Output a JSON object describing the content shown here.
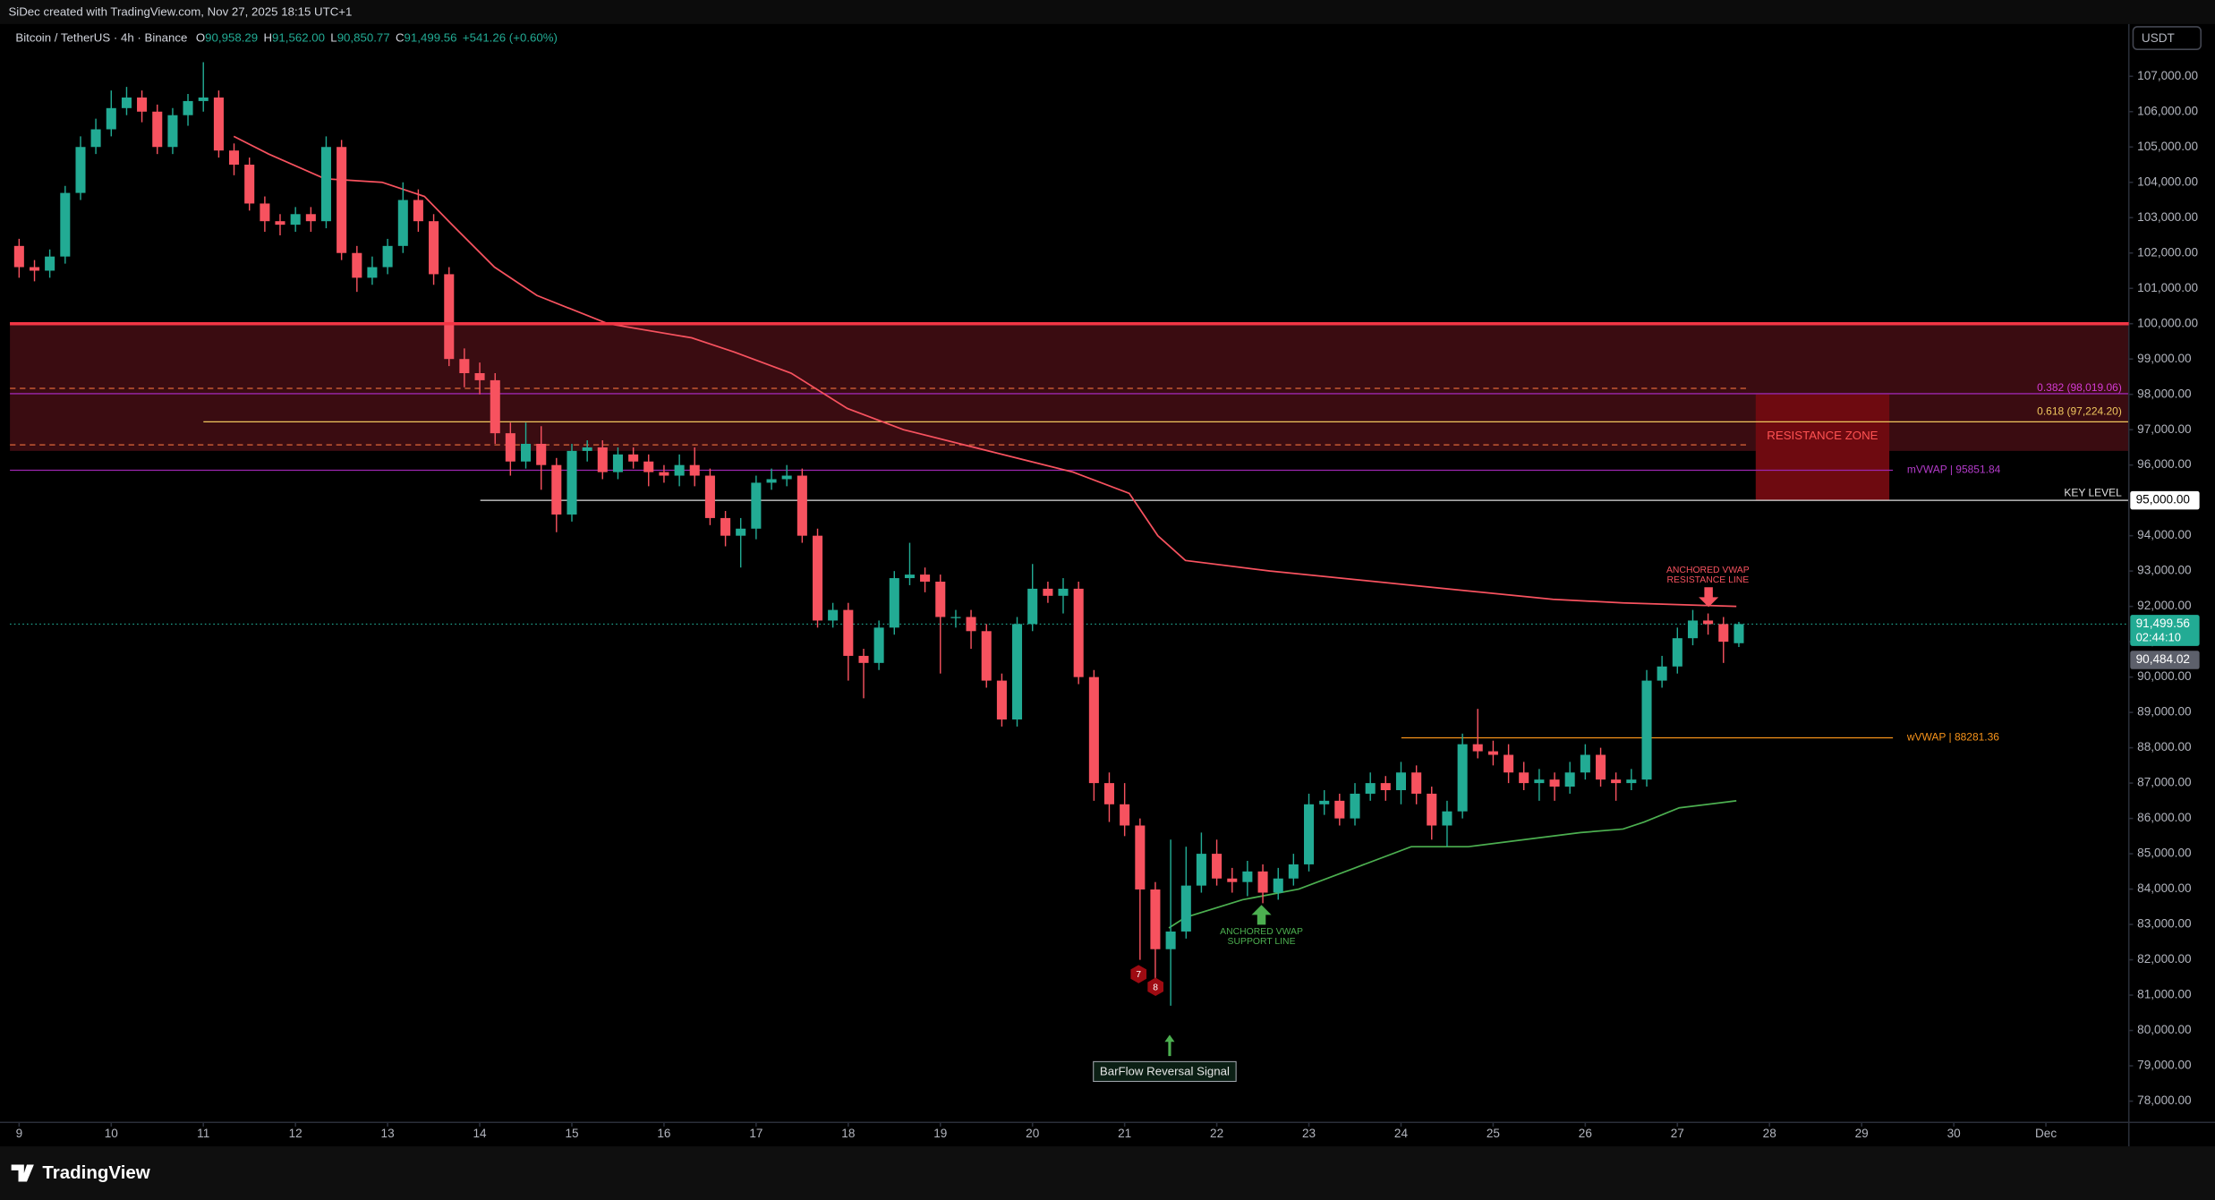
{
  "chart_data": {
    "type": "candlestick",
    "title": "SiDec created with TradingView.com, Nov 27, 2025 18:15 UTC+1",
    "symbol": "Bitcoin / TetherUS · 4h · Binance",
    "ohlc_legend": [
      {
        "key": "O",
        "text": "90,958.29"
      },
      {
        "key": "H",
        "text": "91,562.00"
      },
      {
        "key": "L",
        "text": "90,850.77"
      },
      {
        "key": "C",
        "text": "91,499.56"
      }
    ],
    "change": "+541.26 (+0.60%)",
    "currency": "USDT",
    "brand": "TradingView",
    "up_color": "#22ab94",
    "down_color": "#f7525f",
    "grid": false,
    "xlim": [
      8.9,
      31.9
    ],
    "xticks": [
      9,
      10,
      11,
      12,
      13,
      14,
      15,
      16,
      17,
      18,
      19,
      20,
      21,
      22,
      23,
      24,
      25,
      26,
      27,
      28,
      29,
      30,
      {
        "value": 31,
        "label": "Dec"
      }
    ],
    "ylim": [
      77400,
      108480
    ],
    "yticks": [
      {
        "value": 78000,
        "label": "78,000.00"
      },
      {
        "value": 79000,
        "label": "79,000.00"
      },
      {
        "value": 80000,
        "label": "80,000.00"
      },
      {
        "value": 81000,
        "label": "81,000.00"
      },
      {
        "value": 82000,
        "label": "82,000.00"
      },
      {
        "value": 83000,
        "label": "83,000.00"
      },
      {
        "value": 84000,
        "label": "84,000.00"
      },
      {
        "value": 85000,
        "label": "85,000.00"
      },
      {
        "value": 86000,
        "label": "86,000.00"
      },
      {
        "value": 87000,
        "label": "87,000.00"
      },
      {
        "value": 88000,
        "label": "88,000.00"
      },
      {
        "value": 89000,
        "label": "89,000.00"
      },
      {
        "value": 90000,
        "label": "90,000.00"
      },
      {
        "value": 91000,
        "label": "91,000.00"
      },
      {
        "value": 92000,
        "label": "92,000.00"
      },
      {
        "value": 93000,
        "label": "93,000.00"
      },
      {
        "value": 94000,
        "label": "94,000.00"
      },
      {
        "value": 96000,
        "label": "96,000.00"
      },
      {
        "value": 97000,
        "label": "97,000.00"
      },
      {
        "value": 98000,
        "label": "98,000.00"
      },
      {
        "value": 99000,
        "label": "99,000.00"
      },
      {
        "value": 100000,
        "label": "100,000.00"
      },
      {
        "value": 101000,
        "label": "101,000.00"
      },
      {
        "value": 102000,
        "label": "102,000.00"
      },
      {
        "value": 103000,
        "label": "103,000.00"
      },
      {
        "value": 104000,
        "label": "104,000.00"
      },
      {
        "value": 105000,
        "label": "105,000.00"
      },
      {
        "value": 106000,
        "label": "106,000.00"
      },
      {
        "value": 107000,
        "label": "107,000.00"
      }
    ],
    "candles": {
      "x": [
        9,
        9.167,
        9.333,
        9.5,
        9.667,
        9.833,
        10,
        10.167,
        10.333,
        10.5,
        10.667,
        10.833,
        11,
        11.167,
        11.333,
        11.5,
        11.667,
        11.833,
        12,
        12.167,
        12.333,
        12.5,
        12.667,
        12.833,
        13,
        13.167,
        13.333,
        13.5,
        13.667,
        13.833,
        14,
        14.167,
        14.333,
        14.5,
        14.667,
        14.833,
        15,
        15.167,
        15.333,
        15.5,
        15.667,
        15.833,
        16,
        16.167,
        16.333,
        16.5,
        16.667,
        16.833,
        17,
        17.167,
        17.333,
        17.5,
        17.667,
        17.833,
        18,
        18.167,
        18.333,
        18.5,
        18.667,
        18.833,
        19,
        19.167,
        19.333,
        19.5,
        19.667,
        19.833,
        20,
        20.167,
        20.333,
        20.5,
        20.667,
        20.833,
        21,
        21.167,
        21.333,
        21.5,
        21.667,
        21.833,
        22,
        22.167,
        22.333,
        22.5,
        22.667,
        22.833,
        23,
        23.167,
        23.333,
        23.5,
        23.667,
        23.833,
        24,
        24.167,
        24.333,
        24.5,
        24.667,
        24.833,
        25,
        25.167,
        25.333,
        25.5,
        25.667,
        25.833,
        26,
        26.167,
        26.333,
        26.5,
        26.667,
        26.833,
        27,
        27.167,
        27.333,
        27.5,
        27.667
      ],
      "open": [
        102200,
        101600,
        101500,
        101900,
        103700,
        105000,
        105500,
        106100,
        106400,
        106000,
        105000,
        105900,
        106300,
        106400,
        104900,
        104500,
        103400,
        102900,
        102800,
        103100,
        102900,
        105000,
        102000,
        101300,
        101600,
        102200,
        103500,
        102900,
        101400,
        99000,
        98600,
        98400,
        96900,
        96100,
        96600,
        96000,
        94600,
        96400,
        96500,
        95800,
        96300,
        96100,
        95800,
        95700,
        96000,
        95700,
        94500,
        94000,
        94200,
        95500,
        95600,
        95700,
        94000,
        91600,
        91900,
        90600,
        90400,
        91400,
        92800,
        92900,
        92700,
        91700,
        91700,
        91300,
        89900,
        88800,
        91500,
        92500,
        92300,
        92500,
        90000,
        87000,
        86400,
        85800,
        83990,
        82300,
        82800,
        84100,
        85000,
        84300,
        84200,
        84500,
        83900,
        84300,
        84700,
        86400,
        86500,
        86000,
        86700,
        87000,
        86800,
        87300,
        86700,
        85800,
        86200,
        88100,
        87900,
        87800,
        87300,
        87000,
        87100,
        86900,
        87300,
        87800,
        87100,
        87000,
        87100,
        89900,
        90300,
        91100,
        91600,
        91500,
        90958.29
      ],
      "high": [
        102400,
        101800,
        102100,
        103900,
        105300,
        105800,
        106600,
        106700,
        106600,
        106200,
        106100,
        106500,
        107400,
        106600,
        105100,
        104700,
        103600,
        103100,
        103300,
        103300,
        105300,
        105200,
        102200,
        101900,
        102400,
        104000,
        103800,
        103100,
        101600,
        99300,
        98900,
        98600,
        97200,
        97200,
        97100,
        96200,
        96600,
        96700,
        96700,
        96500,
        96500,
        96300,
        96000,
        96300,
        96500,
        95900,
        94700,
        94500,
        95700,
        95900,
        96000,
        95900,
        94200,
        92100,
        92100,
        90800,
        91600,
        93000,
        93800,
        93100,
        92900,
        91900,
        91900,
        91500,
        90100,
        91700,
        93200,
        92700,
        92800,
        92700,
        90200,
        87300,
        87000,
        86000,
        84200,
        85400,
        85200,
        85600,
        85400,
        84600,
        84800,
        84700,
        84600,
        85000,
        86700,
        86800,
        86700,
        87000,
        87300,
        87200,
        87600,
        87500,
        86900,
        86500,
        88400,
        89100,
        88200,
        88100,
        87600,
        87400,
        87300,
        87600,
        88100,
        88000,
        87300,
        87400,
        90200,
        90600,
        91400,
        91900,
        91800,
        91700,
        91562
      ],
      "low": [
        101300,
        101200,
        101300,
        101700,
        103500,
        104800,
        105300,
        105900,
        105700,
        104800,
        104800,
        105600,
        106000,
        104700,
        104200,
        103200,
        102600,
        102500,
        102600,
        102600,
        102700,
        101800,
        100900,
        101100,
        101400,
        102000,
        102600,
        101100,
        98800,
        98200,
        98000,
        96600,
        95700,
        95900,
        95300,
        94100,
        94400,
        96100,
        95600,
        95600,
        95900,
        95400,
        95500,
        95400,
        95400,
        94300,
        93700,
        93100,
        93900,
        95300,
        95400,
        93800,
        91400,
        91400,
        89900,
        89400,
        90200,
        91200,
        92600,
        92400,
        90100,
        91400,
        90800,
        89700,
        88600,
        88600,
        91300,
        92100,
        91800,
        89800,
        86500,
        85900,
        85500,
        82000,
        81400,
        80700,
        82600,
        83900,
        84100,
        83900,
        83800,
        83600,
        83700,
        84100,
        84500,
        86100,
        85800,
        85800,
        86500,
        86500,
        86400,
        86400,
        85400,
        85200,
        86000,
        87700,
        87500,
        87000,
        86800,
        86500,
        86500,
        86700,
        87100,
        86900,
        86500,
        86800,
        86900,
        89700,
        90100,
        90900,
        91200,
        90400,
        90850.77
      ],
      "close": [
        101600,
        101500,
        101900,
        103700,
        105000,
        105500,
        106100,
        106400,
        106000,
        105000,
        105900,
        106300,
        106400,
        104900,
        104500,
        103400,
        102900,
        102800,
        103100,
        102900,
        105000,
        102000,
        101300,
        101600,
        102200,
        103500,
        102900,
        101400,
        99000,
        98600,
        98400,
        96900,
        96100,
        96600,
        96000,
        94600,
        96400,
        96500,
        95800,
        96300,
        96100,
        95800,
        95700,
        96000,
        95700,
        94500,
        94000,
        94200,
        95500,
        95600,
        95700,
        94000,
        91600,
        91900,
        90600,
        90400,
        91400,
        92800,
        92900,
        92700,
        91700,
        91700,
        91300,
        89900,
        88800,
        91500,
        92500,
        92300,
        92500,
        90000,
        87000,
        86400,
        85800,
        83990,
        82300,
        82800,
        84100,
        85000,
        84300,
        84200,
        84500,
        83900,
        84300,
        84700,
        86400,
        86500,
        86000,
        86700,
        87000,
        86800,
        87300,
        86700,
        85800,
        86200,
        88100,
        87900,
        87800,
        87300,
        87000,
        87100,
        86900,
        87300,
        87800,
        87100,
        87000,
        87100,
        89900,
        90300,
        91100,
        91600,
        91500,
        91000,
        91499.56
      ]
    },
    "lines": [
      {
        "color": "#f7525f",
        "x": [
          11.33,
          11.71,
          12.32,
          12.94,
          13.4,
          13.7,
          14.16,
          14.62,
          15.39,
          16.3,
          16.76,
          17.38,
          17.99,
          18.6,
          19.52,
          20.44,
          21.05,
          21.36,
          21.66,
          22.58,
          24.11,
          25.65,
          26.41,
          27.64
        ],
        "values": [
          105300,
          104800,
          104100,
          104000,
          103600,
          102800,
          101600,
          100800,
          100000,
          99600,
          99200,
          98600,
          97600,
          97000,
          96400,
          95800,
          95200,
          94000,
          93300,
          93000,
          92600,
          92200,
          92100,
          92000
        ]
      },
      {
        "color": "#4caf50",
        "x": [
          21.48,
          21.66,
          22.28,
          22.89,
          23.5,
          24.11,
          24.73,
          25.34,
          25.95,
          26.41,
          26.64,
          27.02,
          27.64
        ],
        "values": [
          82900,
          83200,
          83700,
          84000,
          84600,
          85200,
          85200,
          85400,
          85600,
          85700,
          85900,
          86300,
          86500
        ]
      }
    ],
    "zones": [
      {
        "ylim": [
          96400,
          100000
        ],
        "color": "#3a0c11"
      },
      {
        "label": "RESISTANCE ZONE",
        "xlim": [
          27.85,
          29.3
        ],
        "ylim": [
          95000,
          98000
        ],
        "color": "#6e0a10",
        "label_color": "#ff5252"
      }
    ],
    "levels": [
      {
        "value": 100000,
        "color": "#f23645",
        "style": "solid",
        "width": 2.2
      },
      {
        "value": 98170,
        "color": "#e0673a",
        "style": "dashed",
        "width": 0.8
      },
      {
        "value": 98019.06,
        "color": "#9c27b0",
        "style": "solid",
        "width": 0.8,
        "label": "0.382 (98,019.06)",
        "label_color": "#d53bd5"
      },
      {
        "value": 97224.2,
        "color": "#f0c75e",
        "style": "solid",
        "width": 0.8,
        "label": "0.618 (97,224.20)",
        "label_color": "#f0c75e"
      },
      {
        "value": 96570,
        "color": "#e0673a",
        "style": "dashed",
        "width": 0.8
      },
      {
        "value": 95851.84,
        "color": "#9c27b0",
        "style": "solid",
        "width": 0.8,
        "label": "mVWAP | 95851.84",
        "label_color": "#b33bc9"
      },
      {
        "value": 95000,
        "color": "#e0e0e0",
        "style": "solid",
        "width": 0.8,
        "label": "KEY LEVEL",
        "label_color": "#e0e0e0"
      },
      {
        "value": 88281.36,
        "color": "#f7931a",
        "style": "solid",
        "width": 0.8,
        "label": "wVWAP | 88281.36",
        "label_color": "#f7931a"
      },
      {
        "value": 91499.56,
        "color": "#22ab94",
        "style": "dotted",
        "width": 0.7
      }
    ],
    "axis_labels": [
      {
        "value": 95000,
        "label": "95,000.00",
        "bg": "#ffffff",
        "color": "#000000"
      },
      {
        "value": 91499.56,
        "label": "91,499.56",
        "sublabel": "02:44:10",
        "bg": "#22ab94",
        "color": "#ffffff"
      },
      {
        "value": 90484.02,
        "label": "90,484.02",
        "bg": "#5d606b",
        "color": "#ffffff"
      }
    ],
    "annotations": [
      {
        "lines": [
          "ANCHORED VWAP",
          "RESISTANCE LINE"
        ],
        "color": "#f7525f"
      },
      {
        "lines": [
          "ANCHORED VWAP",
          "SUPPORT LINE"
        ],
        "color": "#4caf50"
      },
      {
        "text": "BarFlow Reversal Signal"
      }
    ],
    "signals": [
      "7",
      "8"
    ]
  }
}
